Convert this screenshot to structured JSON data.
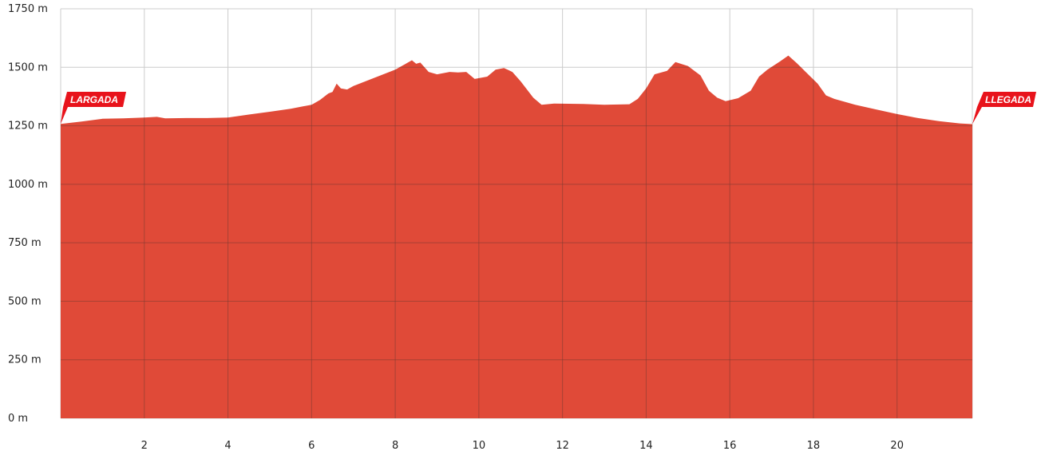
{
  "chart_data": {
    "type": "area",
    "title": "",
    "xlabel": "",
    "ylabel": "",
    "xlim": [
      0,
      21.8
    ],
    "ylim": [
      0,
      1750
    ],
    "grid": true,
    "x_ticks": [
      2,
      4,
      6,
      8,
      10,
      12,
      14,
      16,
      18,
      20
    ],
    "x_tick_labels": [
      "2",
      "4",
      "6",
      "8",
      "10",
      "12",
      "14",
      "16",
      "18",
      "20"
    ],
    "y_ticks": [
      0,
      250,
      500,
      750,
      1000,
      1250,
      1500,
      1750
    ],
    "y_tick_labels": [
      "0 m",
      "250 m",
      "500 m",
      "750 m",
      "1000 m",
      "1250 m",
      "1500 m",
      "1750 m"
    ],
    "colors": {
      "area": "#e04a38",
      "flag": "#e8131b",
      "grid_light": "#cccccc",
      "grid_dark": "#7a3a32"
    },
    "series": [
      {
        "x": [
          0,
          0.5,
          1.0,
          1.5,
          2.0,
          2.3,
          2.5,
          3.0,
          3.5,
          4.0,
          4.5,
          5.0,
          5.5,
          6.0,
          6.2,
          6.4,
          6.5,
          6.6,
          6.7,
          6.85,
          7.0,
          7.5,
          8.0,
          8.2,
          8.4,
          8.5,
          8.6,
          8.8,
          9.0,
          9.3,
          9.5,
          9.7,
          9.9,
          10.2,
          10.4,
          10.6,
          10.8,
          11.0,
          11.3,
          11.5,
          11.8,
          12.5,
          13.0,
          13.6,
          13.8,
          14.0,
          14.2,
          14.5,
          14.7,
          15.0,
          15.3,
          15.5,
          15.7,
          15.9,
          16.2,
          16.5,
          16.7,
          16.9,
          17.2,
          17.4,
          17.6,
          17.9,
          18.1,
          18.3,
          18.5,
          19.0,
          19.5,
          20.0,
          20.5,
          21.0,
          21.5,
          21.8
        ],
        "y": [
          1258,
          1268,
          1280,
          1282,
          1285,
          1288,
          1282,
          1283,
          1283,
          1285,
          1298,
          1310,
          1323,
          1340,
          1360,
          1388,
          1395,
          1430,
          1410,
          1405,
          1420,
          1455,
          1490,
          1510,
          1530,
          1515,
          1520,
          1480,
          1470,
          1480,
          1478,
          1480,
          1450,
          1460,
          1490,
          1497,
          1480,
          1440,
          1370,
          1340,
          1345,
          1343,
          1340,
          1342,
          1365,
          1410,
          1470,
          1485,
          1522,
          1505,
          1465,
          1400,
          1370,
          1355,
          1368,
          1400,
          1460,
          1490,
          1525,
          1550,
          1518,
          1465,
          1430,
          1380,
          1365,
          1340,
          1320,
          1300,
          1283,
          1270,
          1260,
          1257
        ]
      }
    ],
    "annotations": {
      "start_label": "LARGADA",
      "end_label": "LLEGADA"
    }
  }
}
